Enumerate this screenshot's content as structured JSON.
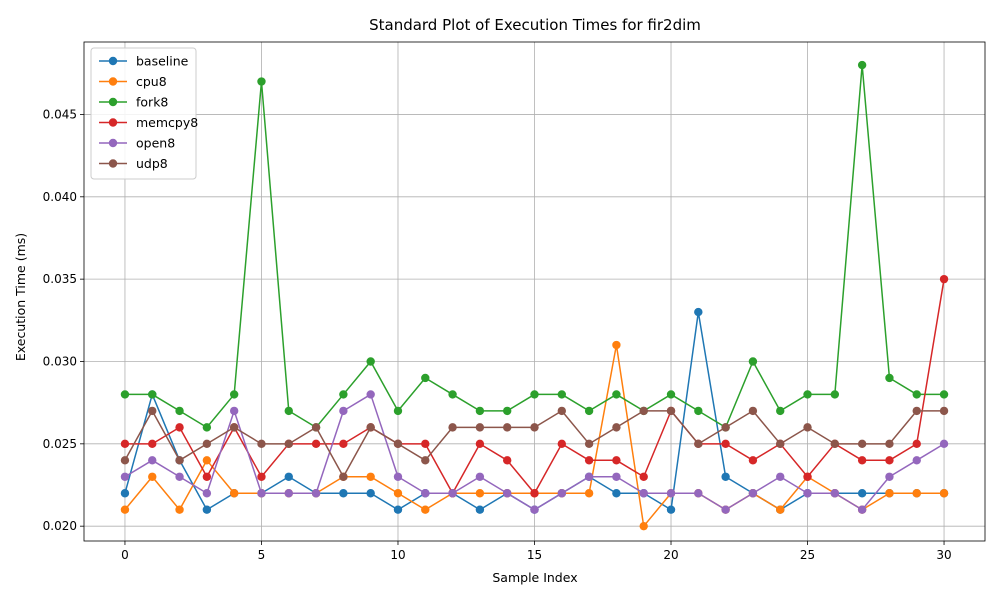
{
  "chart_data": {
    "type": "line",
    "title": "Standard Plot of Execution Times for fir2dim",
    "xlabel": "Sample Index",
    "ylabel": "Execution Time (ms)",
    "xlim": [
      -1.5,
      31.5
    ],
    "ylim": [
      0.0191,
      0.0494
    ],
    "xticks": [
      0,
      5,
      10,
      15,
      20,
      25,
      30
    ],
    "xtick_labels": [
      "0",
      "5",
      "10",
      "15",
      "20",
      "25",
      "30"
    ],
    "yticks": [
      0.02,
      0.025,
      0.03,
      0.035,
      0.04,
      0.045
    ],
    "ytick_labels": [
      "0.020",
      "0.025",
      "0.030",
      "0.035",
      "0.040",
      "0.045"
    ],
    "grid": true,
    "legend_position": "top-left",
    "x": [
      0,
      1,
      2,
      3,
      4,
      5,
      6,
      7,
      8,
      9,
      10,
      11,
      12,
      13,
      14,
      15,
      16,
      17,
      18,
      19,
      20,
      21,
      22,
      23,
      24,
      25,
      26,
      27,
      28,
      29,
      30
    ],
    "series": [
      {
        "name": "baseline",
        "color": "#1f77b4",
        "values": [
          0.022,
          0.028,
          0.024,
          0.021,
          0.022,
          0.022,
          0.023,
          0.022,
          0.022,
          0.022,
          0.021,
          0.022,
          0.022,
          0.021,
          0.022,
          0.021,
          0.022,
          0.023,
          0.022,
          0.022,
          0.021,
          0.033,
          0.023,
          0.022,
          0.021,
          0.022,
          0.022,
          0.022,
          0.022,
          0.022,
          0.022
        ]
      },
      {
        "name": "cpu8",
        "color": "#ff7f0e",
        "values": [
          0.021,
          0.023,
          0.021,
          0.024,
          0.022,
          0.022,
          0.022,
          0.022,
          0.023,
          0.023,
          0.022,
          0.021,
          0.022,
          0.022,
          0.022,
          0.022,
          0.022,
          0.022,
          0.031,
          0.02,
          0.022,
          0.022,
          0.021,
          0.022,
          0.021,
          0.023,
          0.022,
          0.021,
          0.022,
          0.022,
          0.022
        ]
      },
      {
        "name": "fork8",
        "color": "#2ca02c",
        "values": [
          0.028,
          0.028,
          0.027,
          0.026,
          0.028,
          0.047,
          0.027,
          0.026,
          0.028,
          0.03,
          0.027,
          0.029,
          0.028,
          0.027,
          0.027,
          0.028,
          0.028,
          0.027,
          0.028,
          0.027,
          0.028,
          0.027,
          0.026,
          0.03,
          0.027,
          0.028,
          0.028,
          0.048,
          0.029,
          0.028,
          0.028
        ]
      },
      {
        "name": "memcpy8",
        "color": "#d62728",
        "values": [
          0.025,
          0.025,
          0.026,
          0.023,
          0.026,
          0.023,
          0.025,
          0.025,
          0.025,
          0.026,
          0.025,
          0.025,
          0.022,
          0.025,
          0.024,
          0.022,
          0.025,
          0.024,
          0.024,
          0.023,
          0.027,
          0.025,
          0.025,
          0.024,
          0.025,
          0.023,
          0.025,
          0.024,
          0.024,
          0.025,
          0.035
        ]
      },
      {
        "name": "open8",
        "color": "#9467bd",
        "values": [
          0.023,
          0.024,
          0.023,
          0.022,
          0.027,
          0.022,
          0.022,
          0.022,
          0.027,
          0.028,
          0.023,
          0.022,
          0.022,
          0.023,
          0.022,
          0.021,
          0.022,
          0.023,
          0.023,
          0.022,
          0.022,
          0.022,
          0.021,
          0.022,
          0.023,
          0.022,
          0.022,
          0.021,
          0.023,
          0.024,
          0.025
        ]
      },
      {
        "name": "udp8",
        "color": "#8c564b",
        "values": [
          0.024,
          0.027,
          0.024,
          0.025,
          0.026,
          0.025,
          0.025,
          0.026,
          0.023,
          0.026,
          0.025,
          0.024,
          0.026,
          0.026,
          0.026,
          0.026,
          0.027,
          0.025,
          0.026,
          0.027,
          0.027,
          0.025,
          0.026,
          0.027,
          0.025,
          0.026,
          0.025,
          0.025,
          0.025,
          0.027,
          0.027
        ]
      }
    ]
  }
}
